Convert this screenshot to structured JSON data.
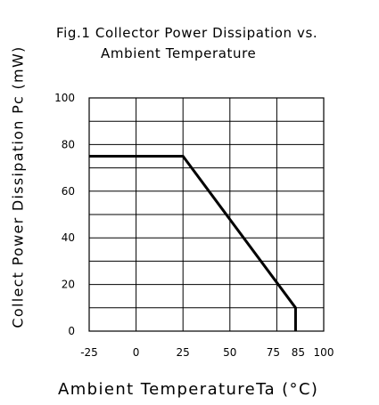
{
  "chart_data": {
    "type": "line",
    "title_lines": [
      "Fig.1 Collector Power Dissipation vs.",
      "Ambient Temperature"
    ],
    "xlabel": "Ambient TemperatureTa (°C)",
    "ylabel": "Collect Power Dissipation Pc (mW)",
    "xlim": [
      -25,
      100
    ],
    "ylim": [
      0,
      100
    ],
    "x_ticks": [
      "-25",
      "0",
      "25",
      "50",
      "75",
      "85",
      "100"
    ],
    "x_tick_values": [
      -25,
      0,
      25,
      50,
      75,
      85,
      100
    ],
    "y_ticks": [
      "0",
      "20",
      "40",
      "60",
      "80",
      "100"
    ],
    "y_tick_values": [
      0,
      20,
      40,
      60,
      80,
      100
    ],
    "x_grid": [
      -25,
      0,
      25,
      50,
      75,
      100
    ],
    "y_grid": [
      0,
      10,
      20,
      30,
      40,
      50,
      60,
      70,
      80,
      90,
      100
    ],
    "grid": true,
    "series": [
      {
        "x": [
          -25,
          25,
          85,
          85
        ],
        "y": [
          75,
          75,
          10,
          0
        ],
        "color": "#000000"
      }
    ]
  }
}
